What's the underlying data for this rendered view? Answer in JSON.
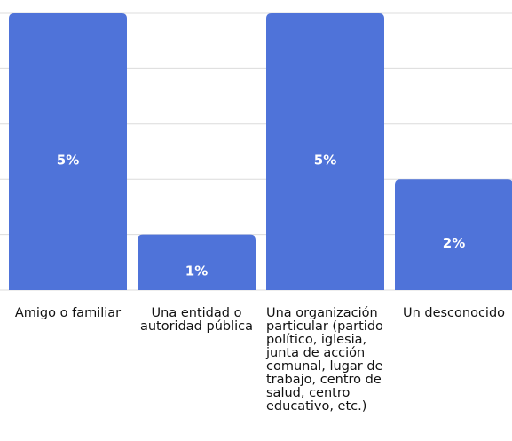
{
  "chart_data": {
    "type": "bar",
    "categories": [
      "Amigo o familiar",
      "Una entidad o autoridad pública",
      "Una organización particular (partido político, iglesia, junta de acción comunal, lugar de trabajo, centro de salud, centro educativo, etc.)",
      "Un desconocido"
    ],
    "values": [
      5,
      1,
      5,
      2
    ],
    "value_labels": [
      "5%",
      "1%",
      "5%",
      "2%"
    ],
    "color": "#4f73d9",
    "ylim": [
      0,
      5
    ],
    "yticks": [
      0,
      1,
      2,
      3,
      4,
      5
    ],
    "grid": true
  }
}
